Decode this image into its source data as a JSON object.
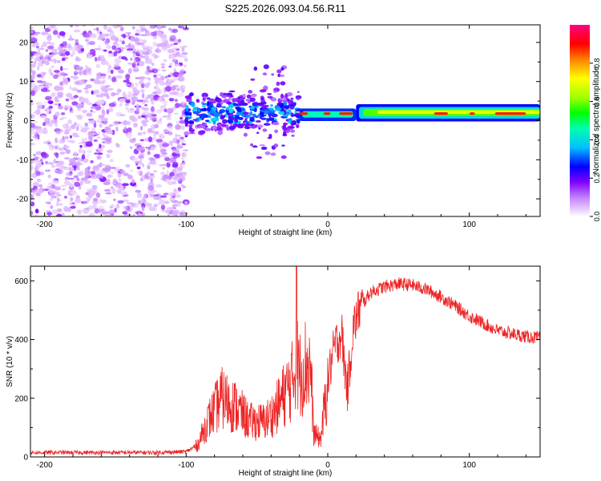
{
  "title": "S225.2026.093.04.56.R11",
  "chart_data": [
    {
      "type": "heatmap",
      "name": "spectrogram",
      "xlabel": "Height of straight line (km)",
      "ylabel": "Frequency (Hz)",
      "xlim": [
        -210,
        150
      ],
      "ylim": [
        -24.5,
        24.5
      ],
      "xticks": [
        -200,
        -100,
        0,
        100
      ],
      "yticks": [
        -20,
        -10,
        0,
        10,
        20
      ],
      "colorbar": {
        "label": "Normalized spectral amplitude",
        "range": [
          0,
          1
        ],
        "ticks": [
          0,
          0.2,
          0.4,
          0.6,
          0.8
        ],
        "colors": [
          "#ffffff",
          "#e8c8ff",
          "#c080ff",
          "#8000ff",
          "#0000ff",
          "#00c0ff",
          "#00ffb0",
          "#00ff00",
          "#a0ff00",
          "#ffff00",
          "#ff8000",
          "#ff0000",
          "#ff0080"
        ]
      },
      "features": [
        {
          "x_range": [
            -210,
            -100
          ],
          "freq_range": [
            -24,
            24
          ],
          "amplitude": 0.08,
          "description": "broadband noise"
        },
        {
          "x_range": [
            -100,
            -20
          ],
          "freq_range": [
            -12,
            12
          ],
          "amplitude": 0.25,
          "description": "scattered signal cluster"
        },
        {
          "x_range": [
            -20,
            20
          ],
          "center_hz": 1.5,
          "amplitude": 0.6
        },
        {
          "x_range": [
            20,
            150
          ],
          "center_hz": 2.0,
          "amplitude": 0.75
        }
      ]
    },
    {
      "type": "line",
      "name": "snr",
      "xlabel": "Height of straight line (km)",
      "ylabel": "SNR (10 * v/v)",
      "xlim": [
        -210,
        150
      ],
      "ylim": [
        0,
        650
      ],
      "xticks": [
        -200,
        -100,
        0,
        100
      ],
      "yticks": [
        0,
        200,
        400,
        600
      ],
      "color": "#ee2222",
      "envelope": {
        "x": [
          -210,
          -120,
          -100,
          -92,
          -85,
          -75,
          -65,
          -55,
          -45,
          -38,
          -30,
          -25,
          -22,
          -20,
          -15,
          -12,
          -10,
          -5,
          0,
          5,
          10,
          12,
          14,
          18,
          22,
          30,
          40,
          50,
          60,
          70,
          80,
          90,
          100,
          110,
          120,
          130,
          140,
          150
        ],
        "y": [
          15,
          15,
          18,
          40,
          120,
          200,
          170,
          120,
          120,
          150,
          220,
          260,
          330,
          280,
          320,
          300,
          80,
          60,
          260,
          380,
          420,
          300,
          230,
          440,
          500,
          560,
          580,
          590,
          585,
          570,
          545,
          515,
          480,
          455,
          430,
          420,
          410,
          405
        ]
      }
    }
  ]
}
